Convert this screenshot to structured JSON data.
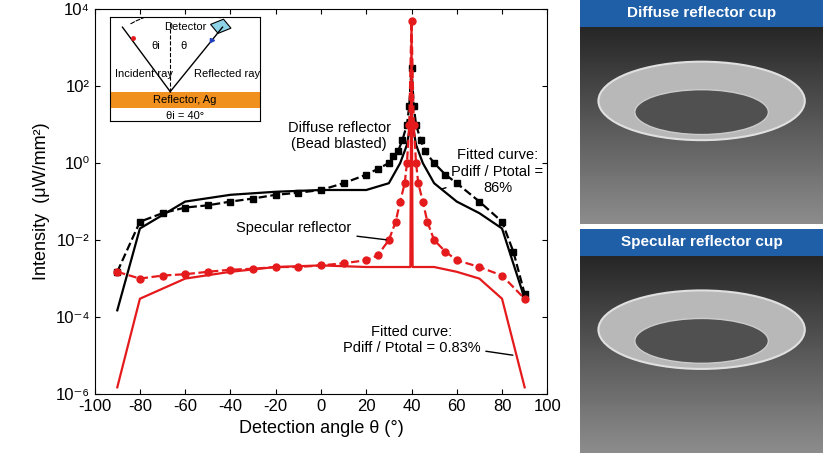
{
  "chart_data": {
    "type": "line",
    "x_label": "Detection angle θ (°)",
    "y_label": "Intensity  (μW/mm²)",
    "log": "y",
    "grid": false,
    "xlim": [
      -100,
      100
    ],
    "xticks": [
      -100,
      -80,
      -60,
      -40,
      -20,
      0,
      20,
      40,
      60,
      80,
      100
    ],
    "ylim": [
      1e-06,
      10000
    ],
    "yticks": [
      {
        "value": 1e-06,
        "label": "10⁻⁶"
      },
      {
        "value": 0.0001,
        "label": "10⁻⁴"
      },
      {
        "value": 0.01,
        "label": "10⁻²"
      },
      {
        "value": 1,
        "label": "10⁰"
      },
      {
        "value": 100,
        "label": "10²"
      },
      {
        "value": 10000,
        "label": "10⁴"
      }
    ],
    "series": [
      {
        "color": "#000000",
        "marker": "square",
        "line_style": "dashed",
        "x": [
          -90,
          -80,
          -70,
          -60,
          -50,
          -40,
          -30,
          -20,
          -10,
          0,
          10,
          20,
          25,
          30,
          32,
          34,
          36,
          38,
          39,
          40,
          41,
          42,
          44,
          46,
          50,
          55,
          60,
          70,
          80,
          85,
          90
        ],
        "values": [
          0.0015,
          0.03,
          0.05,
          0.07,
          0.08,
          0.1,
          0.12,
          0.15,
          0.17,
          0.2,
          0.3,
          0.5,
          0.7,
          1,
          1.5,
          2,
          4,
          10,
          30,
          300,
          30,
          10,
          4,
          2,
          1,
          0.5,
          0.3,
          0.1,
          0.03,
          0.005,
          0.0004
        ]
      },
      {
        "color": "#000000",
        "marker": "none",
        "line_style": "solid",
        "x": [
          -90,
          -80,
          -60,
          -40,
          -20,
          0,
          20,
          30,
          35,
          38,
          39.5,
          40,
          40.5,
          42,
          45,
          50,
          60,
          70,
          80,
          90
        ],
        "values": [
          0.00015,
          0.02,
          0.1,
          0.15,
          0.18,
          0.2,
          0.2,
          0.3,
          1,
          3,
          10,
          30,
          10,
          3,
          1,
          0.3,
          0.1,
          0.05,
          0.02,
          0.0003
        ]
      },
      {
        "color": "#e41a1c",
        "marker": "circle",
        "line_style": "dashed",
        "x": [
          -90,
          -80,
          -70,
          -60,
          -50,
          -40,
          -30,
          -20,
          -10,
          0,
          10,
          20,
          25,
          30,
          33,
          35,
          37,
          38,
          39,
          40,
          41,
          42,
          43,
          45,
          47,
          50,
          55,
          60,
          70,
          80,
          90
        ],
        "values": [
          0.0015,
          0.001,
          0.0012,
          0.0013,
          0.0015,
          0.0017,
          0.0018,
          0.002,
          0.002,
          0.0022,
          0.0025,
          0.003,
          0.004,
          0.01,
          0.03,
          0.1,
          0.3,
          1,
          10,
          5000,
          10,
          1,
          0.3,
          0.1,
          0.03,
          0.01,
          0.005,
          0.003,
          0.002,
          0.0012,
          0.0003
        ]
      },
      {
        "color": "#e41a1c",
        "marker": "none",
        "line_style": "solid",
        "x": [
          -90,
          -80,
          -60,
          -40,
          -20,
          0,
          20,
          35,
          39.5,
          40,
          40.5,
          50,
          60,
          70,
          80,
          90
        ],
        "values": [
          1.5e-06,
          0.0003,
          0.001,
          0.0015,
          0.002,
          0.0022,
          0.002,
          0.002,
          0.002,
          5000,
          0.002,
          0.002,
          0.0015,
          0.001,
          0.0003,
          1.5e-06
        ]
      }
    ],
    "annotations": [
      "Diffuse reflector\n(Bead blasted)",
      "Specular reflector",
      "Fitted curve:\nPdiff / Ptotal =\n86%",
      "Fitted curve:\nPdiff / Ptotal = 0.83%"
    ],
    "inset": {
      "detector": "Detector",
      "incident": "Incident ray",
      "reflected": "Reflected ray",
      "reflector": "Reflector, Ag",
      "angle_i": "θi",
      "angle": "θ",
      "condition": "θi = 40°"
    }
  },
  "photos": [
    {
      "title": "Diffuse reflector cup"
    },
    {
      "title": "Specular reflector cup"
    }
  ]
}
